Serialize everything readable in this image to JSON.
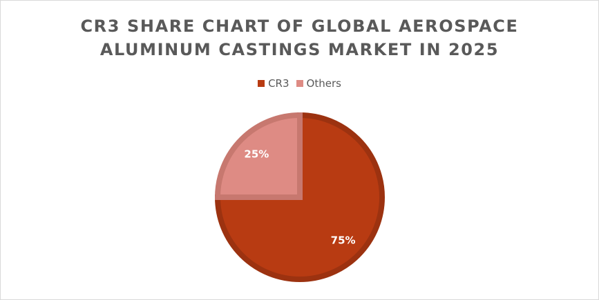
{
  "chart_data": {
    "type": "pie",
    "title_lines": [
      "CR3 SHARE CHART OF GLOBAL AEROSPACE",
      "ALUMINUM CASTINGS MARKET IN 2025"
    ],
    "legend_position": "top",
    "slices": [
      {
        "name": "CR3",
        "value": 75,
        "label": "75%",
        "color": "#b83b12",
        "border_color": "#9c3210"
      },
      {
        "name": "Others",
        "value": 25,
        "label": "25%",
        "color": "#de8b84",
        "border_color": "#c7786f"
      }
    ]
  }
}
